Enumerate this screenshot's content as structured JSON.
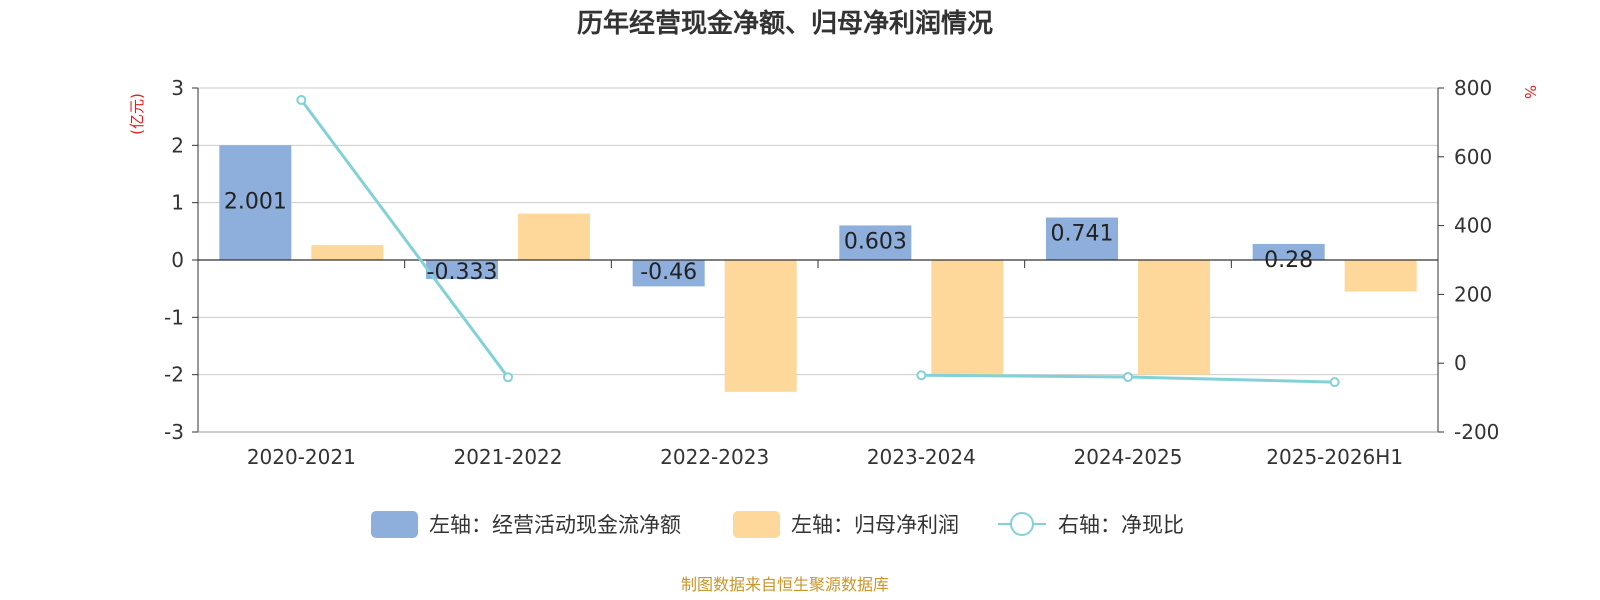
{
  "chart_data": {
    "type": "bar",
    "title": "历年经营现金净额、归母净利润情况",
    "categories": [
      "2020-2021",
      "2021-2022",
      "2022-2023",
      "2023-2024",
      "2024-2025",
      "2025-2026H1"
    ],
    "left_axis": {
      "unit": "(亿元)",
      "ylim": [
        -3,
        3
      ],
      "ticks": [
        "3",
        "2",
        "1",
        "0",
        "-1",
        "-2",
        "-3"
      ]
    },
    "right_axis": {
      "unit": "%",
      "ylim": [
        -200,
        800
      ],
      "ticks": [
        "800",
        "600",
        "400",
        "200",
        "0",
        "-200"
      ]
    },
    "series": [
      {
        "name": "左轴：经营活动现金流净额",
        "type": "bar",
        "axis": "left",
        "color": "#8eaedb",
        "values": [
          2.001,
          -0.333,
          -0.46,
          0.603,
          0.741,
          0.28
        ],
        "labels": [
          "2.001",
          "-0.333",
          "-0.46",
          "0.603",
          "0.741",
          "0.28"
        ]
      },
      {
        "name": "左轴：归母净利润",
        "type": "bar",
        "axis": "left",
        "color": "#fdd89a",
        "values": [
          0.26,
          0.81,
          -2.3,
          -2.0,
          -2.0,
          -0.55
        ]
      },
      {
        "name": "右轴：净现比",
        "type": "line",
        "axis": "right",
        "color": "#83d1d6",
        "values": [
          765,
          -41,
          null,
          -35,
          -40,
          -55
        ]
      }
    ],
    "grid": true,
    "legend": "bottom",
    "source": "制图数据来自恒生聚源数据库"
  }
}
